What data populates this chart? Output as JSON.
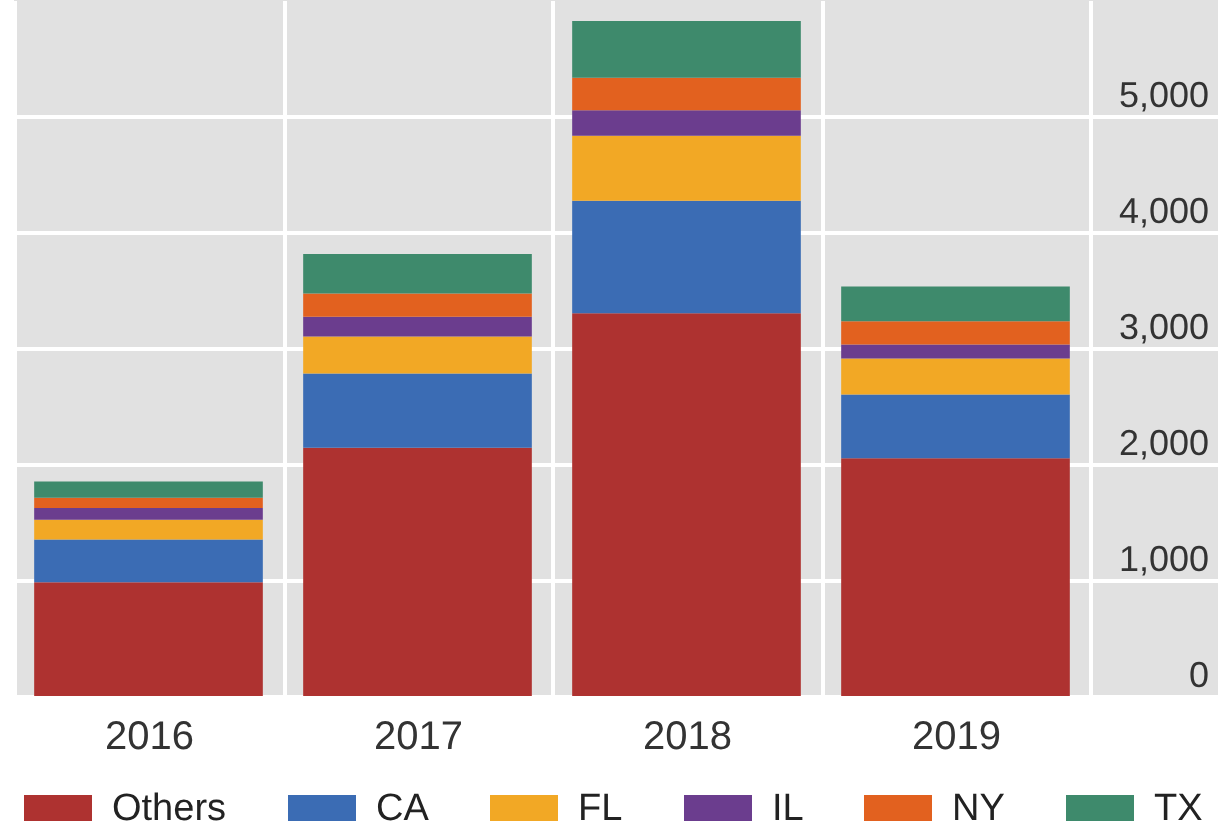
{
  "chart_data": {
    "type": "bar",
    "categories": [
      "2016",
      "2017",
      "2018",
      "2019"
    ],
    "series": [
      {
        "name": "Others",
        "color": "#ae3230",
        "values": [
          980,
          2140,
          3300,
          2050
        ]
      },
      {
        "name": "CA",
        "color": "#3b6cb4",
        "values": [
          370,
          640,
          970,
          550
        ]
      },
      {
        "name": "FL",
        "color": "#f2a825",
        "values": [
          170,
          320,
          560,
          310
        ]
      },
      {
        "name": "IL",
        "color": "#6b3d8e",
        "values": [
          100,
          170,
          220,
          120
        ]
      },
      {
        "name": "NY",
        "color": "#e2611f",
        "values": [
          90,
          200,
          280,
          200
        ]
      },
      {
        "name": "TX",
        "color": "#3e8a6c",
        "values": [
          140,
          340,
          490,
          300
        ]
      }
    ],
    "stacked": true,
    "ylim": [
      0,
      6000
    ],
    "yticks": [
      0,
      {
        "value": 1000,
        "label": "1,000"
      },
      {
        "value": 2000,
        "label": "2,000"
      },
      {
        "value": 3000,
        "label": "3,000"
      },
      {
        "value": 4000,
        "label": "4,000"
      },
      {
        "value": 5000,
        "label": "5,000"
      }
    ],
    "grid": true,
    "legend": "bottom"
  }
}
